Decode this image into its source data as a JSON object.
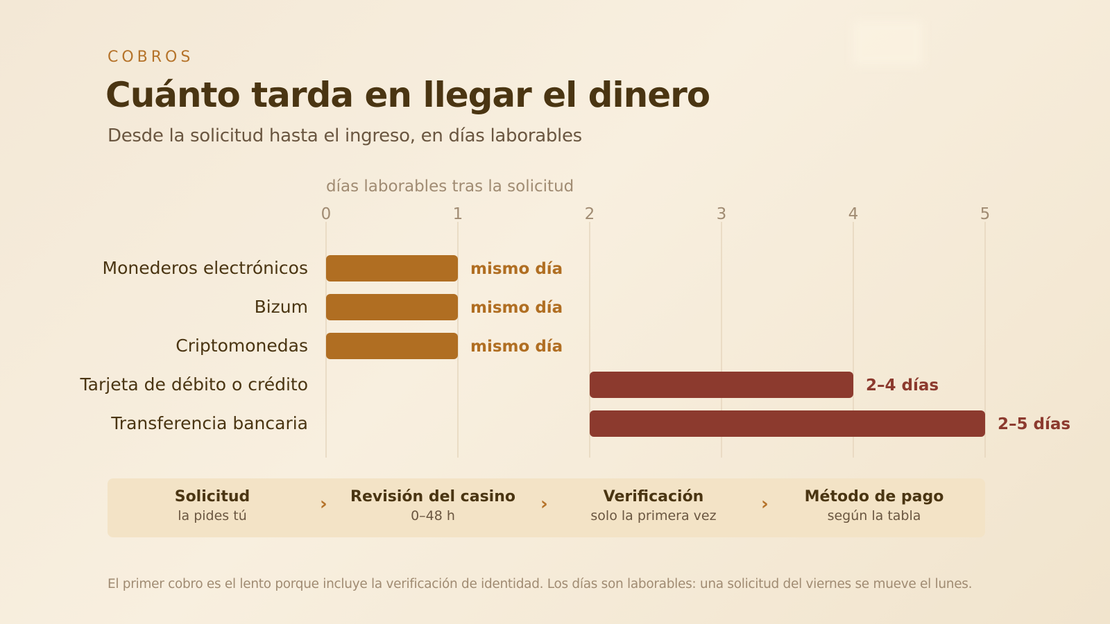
{
  "header": {
    "eyebrow": "COBROS",
    "title": "Cuánto tarda en llegar el dinero",
    "subtitle": "Desde la solicitud hasta el ingreso, en días laborables"
  },
  "chart_data": {
    "type": "bar",
    "orientation": "horizontal-range",
    "xlabel": "días laborables tras la solicitud",
    "xlim": [
      0,
      5
    ],
    "xticks": [
      "0",
      "1",
      "2",
      "3",
      "4",
      "5"
    ],
    "grid": true,
    "categories": [
      "Monederos electrónicos",
      "Bizum",
      "Criptomonedas",
      "Tarjeta de débito o crédito",
      "Transferencia bancaria"
    ],
    "bars": [
      {
        "start": 0,
        "end": 1,
        "label": "mismo día",
        "group": "fast"
      },
      {
        "start": 0,
        "end": 1,
        "label": "mismo día",
        "group": "fast"
      },
      {
        "start": 0,
        "end": 1,
        "label": "mismo día",
        "group": "fast"
      },
      {
        "start": 2,
        "end": 4,
        "label": "2–4 días",
        "group": "slow"
      },
      {
        "start": 2,
        "end": 5,
        "label": "2–5 días",
        "group": "slow"
      }
    ],
    "colors": {
      "fast": "#b06e22",
      "slow": "#8c3a2e",
      "grid": "#e6d6bd",
      "tick": "#a08b72",
      "category": "#4a3512"
    }
  },
  "process": {
    "steps": [
      {
        "title": "Solicitud",
        "sub": "la pides tú"
      },
      {
        "title": "Revisión del casino",
        "sub": "0–48 h"
      },
      {
        "title": "Verificación",
        "sub": "solo la primera vez"
      },
      {
        "title": "Método de pago",
        "sub": "según la tabla"
      }
    ],
    "separator": "›"
  },
  "footnote": "El primer cobro es el lento porque incluye la verificación de identidad. Los días son laborables: una solicitud del viernes se mueve el lunes."
}
